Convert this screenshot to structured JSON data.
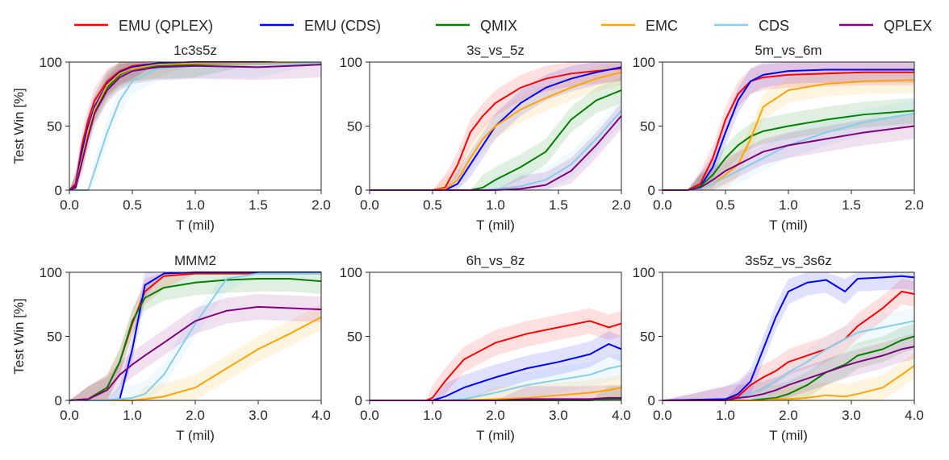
{
  "chart_data": [
    {
      "type": "line",
      "title": "1c3s5z",
      "xlabel": "T (mil)",
      "ylabel": "Test Win [%]",
      "xlim": [
        0,
        2.0
      ],
      "ylim": [
        0,
        100
      ],
      "xticks": [
        "0.0",
        "0.5",
        "1.0",
        "1.5",
        "2.0"
      ],
      "yticks": [
        "0",
        "50",
        "100"
      ],
      "x": [
        0,
        0.05,
        0.1,
        0.15,
        0.2,
        0.3,
        0.4,
        0.5,
        0.7,
        1.0,
        1.5,
        2.0
      ],
      "series": [
        {
          "name": "EMU (QPLEX)",
          "values": [
            0,
            5,
            35,
            55,
            70,
            85,
            93,
            97,
            99,
            100,
            100,
            99
          ]
        },
        {
          "name": "EMU (CDS)",
          "values": [
            0,
            3,
            30,
            50,
            65,
            83,
            92,
            96,
            99,
            100,
            100,
            99
          ]
        },
        {
          "name": "QMIX",
          "values": [
            0,
            2,
            25,
            45,
            62,
            80,
            90,
            95,
            97,
            98,
            99,
            99
          ]
        },
        {
          "name": "EMC",
          "values": [
            0,
            2,
            25,
            47,
            63,
            82,
            91,
            95,
            98,
            99,
            99,
            99
          ]
        },
        {
          "name": "CDS",
          "values": [
            0,
            0,
            0,
            0,
            15,
            45,
            70,
            85,
            95,
            97,
            98,
            99
          ]
        },
        {
          "name": "QPLEX",
          "values": [
            0,
            2,
            22,
            42,
            60,
            78,
            88,
            93,
            96,
            97,
            96,
            98
          ]
        }
      ]
    },
    {
      "type": "line",
      "title": "3s_vs_5z",
      "xlabel": "T (mil)",
      "ylabel": "",
      "xlim": [
        0,
        2.0
      ],
      "ylim": [
        0,
        100
      ],
      "xticks": [
        "0.0",
        "0.5",
        "1.0",
        "1.5",
        "2.0"
      ],
      "yticks": [
        "0",
        "50",
        "100"
      ],
      "x": [
        0,
        0.5,
        0.6,
        0.7,
        0.8,
        0.9,
        1.0,
        1.2,
        1.4,
        1.6,
        1.8,
        2.0
      ],
      "series": [
        {
          "name": "EMU (QPLEX)",
          "values": [
            0,
            0,
            2,
            20,
            45,
            58,
            68,
            80,
            87,
            91,
            93,
            95
          ]
        },
        {
          "name": "EMU (CDS)",
          "values": [
            0,
            0,
            0,
            5,
            20,
            35,
            50,
            68,
            80,
            87,
            92,
            96
          ]
        },
        {
          "name": "QMIX",
          "values": [
            0,
            0,
            0,
            0,
            0,
            2,
            8,
            18,
            30,
            55,
            70,
            78
          ]
        },
        {
          "name": "EMC",
          "values": [
            0,
            0,
            1,
            8,
            25,
            40,
            50,
            63,
            72,
            80,
            87,
            92
          ]
        },
        {
          "name": "CDS",
          "values": [
            0,
            0,
            0,
            0,
            0,
            0,
            1,
            3,
            8,
            20,
            40,
            62
          ]
        },
        {
          "name": "QPLEX",
          "values": [
            0,
            0,
            0,
            0,
            0,
            0,
            0,
            1,
            4,
            15,
            35,
            58
          ]
        }
      ]
    },
    {
      "type": "line",
      "title": "5m_vs_6m",
      "xlabel": "T (mil)",
      "ylabel": "",
      "xlim": [
        0,
        2.0
      ],
      "ylim": [
        0,
        100
      ],
      "xticks": [
        "0.0",
        "0.5",
        "1.0",
        "1.5",
        "2.0"
      ],
      "yticks": [
        "0",
        "50",
        "100"
      ],
      "x": [
        0,
        0.2,
        0.3,
        0.4,
        0.5,
        0.6,
        0.7,
        0.8,
        1.0,
        1.3,
        1.6,
        2.0
      ],
      "series": [
        {
          "name": "EMU (QPLEX)",
          "values": [
            0,
            0,
            5,
            25,
            55,
            75,
            85,
            88,
            90,
            91,
            92,
            92
          ]
        },
        {
          "name": "EMU (CDS)",
          "values": [
            0,
            0,
            3,
            18,
            45,
            70,
            85,
            90,
            93,
            94,
            94,
            94
          ]
        },
        {
          "name": "QMIX",
          "values": [
            0,
            0,
            3,
            12,
            25,
            35,
            42,
            46,
            50,
            55,
            59,
            62
          ]
        },
        {
          "name": "EMC",
          "values": [
            0,
            0,
            2,
            5,
            12,
            20,
            40,
            65,
            78,
            83,
            85,
            86
          ]
        },
        {
          "name": "CDS",
          "values": [
            0,
            0,
            1,
            5,
            10,
            15,
            20,
            25,
            35,
            45,
            53,
            60
          ]
        },
        {
          "name": "QPLEX",
          "values": [
            0,
            0,
            2,
            8,
            15,
            20,
            25,
            30,
            35,
            40,
            45,
            50
          ]
        }
      ]
    },
    {
      "type": "line",
      "title": "MMM2",
      "xlabel": "T (mil)",
      "ylabel": "Test Win [%]",
      "xlim": [
        0,
        4.0
      ],
      "ylim": [
        0,
        100
      ],
      "xticks": [
        "0.0",
        "1.0",
        "2.0",
        "3.0",
        "4.0"
      ],
      "yticks": [
        "0",
        "50",
        "100"
      ],
      "x": [
        0,
        0.3,
        0.6,
        0.8,
        1.0,
        1.2,
        1.5,
        2.0,
        2.5,
        3.0,
        3.5,
        4.0
      ],
      "series": [
        {
          "name": "EMU (QPLEX)",
          "values": [
            0,
            1,
            10,
            30,
            60,
            85,
            97,
            99,
            99,
            99,
            99,
            99
          ]
        },
        {
          "name": "EMU (CDS)",
          "values": [
            0,
            0,
            0,
            1,
            40,
            90,
            99,
            100,
            100,
            100,
            100,
            100
          ]
        },
        {
          "name": "QMIX",
          "values": [
            0,
            1,
            10,
            30,
            62,
            80,
            88,
            92,
            94,
            95,
            95,
            93
          ]
        },
        {
          "name": "EMC",
          "values": [
            0,
            0,
            0,
            0,
            0,
            1,
            3,
            10,
            25,
            40,
            52,
            65
          ]
        },
        {
          "name": "CDS",
          "values": [
            0,
            0,
            0,
            1,
            2,
            5,
            20,
            60,
            95,
            99,
            99,
            99
          ]
        },
        {
          "name": "QPLEX",
          "values": [
            0,
            1,
            8,
            20,
            28,
            35,
            45,
            62,
            70,
            73,
            72,
            71
          ]
        }
      ]
    },
    {
      "type": "line",
      "title": "6h_vs_8z",
      "xlabel": "T (mil)",
      "ylabel": "",
      "xlim": [
        0,
        4.0
      ],
      "ylim": [
        0,
        100
      ],
      "xticks": [
        "0.0",
        "1.0",
        "2.0",
        "3.0",
        "4.0"
      ],
      "yticks": [
        "0",
        "50",
        "100"
      ],
      "x": [
        0,
        0.9,
        1.0,
        1.2,
        1.5,
        2.0,
        2.5,
        3.0,
        3.5,
        3.8,
        4.0
      ],
      "series": [
        {
          "name": "EMU (QPLEX)",
          "values": [
            0,
            0,
            2,
            15,
            32,
            45,
            52,
            57,
            62,
            57,
            60
          ]
        },
        {
          "name": "EMU (CDS)",
          "values": [
            0,
            0,
            0,
            3,
            10,
            18,
            25,
            30,
            36,
            44,
            40
          ]
        },
        {
          "name": "QMIX",
          "values": [
            0,
            0,
            0,
            0,
            0,
            0,
            0,
            0,
            0,
            1,
            1
          ]
        },
        {
          "name": "EMC",
          "values": [
            0,
            0,
            0,
            0,
            0,
            1,
            2,
            4,
            6,
            8,
            10
          ]
        },
        {
          "name": "CDS",
          "values": [
            0,
            0,
            0,
            0,
            1,
            6,
            12,
            16,
            20,
            25,
            27
          ]
        },
        {
          "name": "QPLEX",
          "values": [
            0,
            0,
            0,
            0,
            0,
            0,
            1,
            1,
            1,
            2,
            2
          ]
        }
      ]
    },
    {
      "type": "line",
      "title": "3s5z_vs_3s6z",
      "xlabel": "T (mil)",
      "ylabel": "",
      "xlim": [
        0,
        4.0
      ],
      "ylim": [
        0,
        100
      ],
      "xticks": [
        "0.0",
        "1.0",
        "2.0",
        "3.0",
        "4.0"
      ],
      "yticks": [
        "0",
        "50",
        "100"
      ],
      "x": [
        0,
        1.0,
        1.2,
        1.4,
        1.6,
        1.8,
        2.0,
        2.3,
        2.6,
        2.9,
        3.1,
        3.5,
        3.8,
        4.0
      ],
      "series": [
        {
          "name": "EMU (QPLEX)",
          "values": [
            0,
            1,
            3,
            12,
            18,
            23,
            30,
            35,
            40,
            48,
            58,
            72,
            85,
            83
          ]
        },
        {
          "name": "EMU (CDS)",
          "values": [
            0,
            1,
            5,
            15,
            40,
            65,
            85,
            92,
            94,
            85,
            95,
            96,
            97,
            96
          ]
        },
        {
          "name": "QMIX",
          "values": [
            0,
            0,
            0,
            0,
            1,
            2,
            5,
            12,
            22,
            28,
            35,
            40,
            47,
            50
          ]
        },
        {
          "name": "EMC",
          "values": [
            0,
            0,
            0,
            0,
            0,
            1,
            1,
            2,
            4,
            3,
            5,
            10,
            20,
            27
          ]
        },
        {
          "name": "CDS",
          "values": [
            0,
            0,
            2,
            5,
            10,
            15,
            22,
            30,
            40,
            48,
            53,
            57,
            60,
            62
          ]
        },
        {
          "name": "QPLEX",
          "values": [
            0,
            0,
            2,
            3,
            5,
            8,
            12,
            17,
            22,
            27,
            30,
            35,
            40,
            42
          ]
        }
      ]
    }
  ],
  "legend": {
    "placement": "top",
    "entries": [
      {
        "name": "EMU (QPLEX)",
        "color": "#ff0000"
      },
      {
        "name": "EMU (CDS)",
        "color": "#0000ff"
      },
      {
        "name": "QMIX",
        "color": "#008000"
      },
      {
        "name": "EMC",
        "color": "#ffa500"
      },
      {
        "name": "CDS",
        "color": "#87ceeb"
      },
      {
        "name": "QPLEX",
        "color": "#800080"
      }
    ]
  }
}
